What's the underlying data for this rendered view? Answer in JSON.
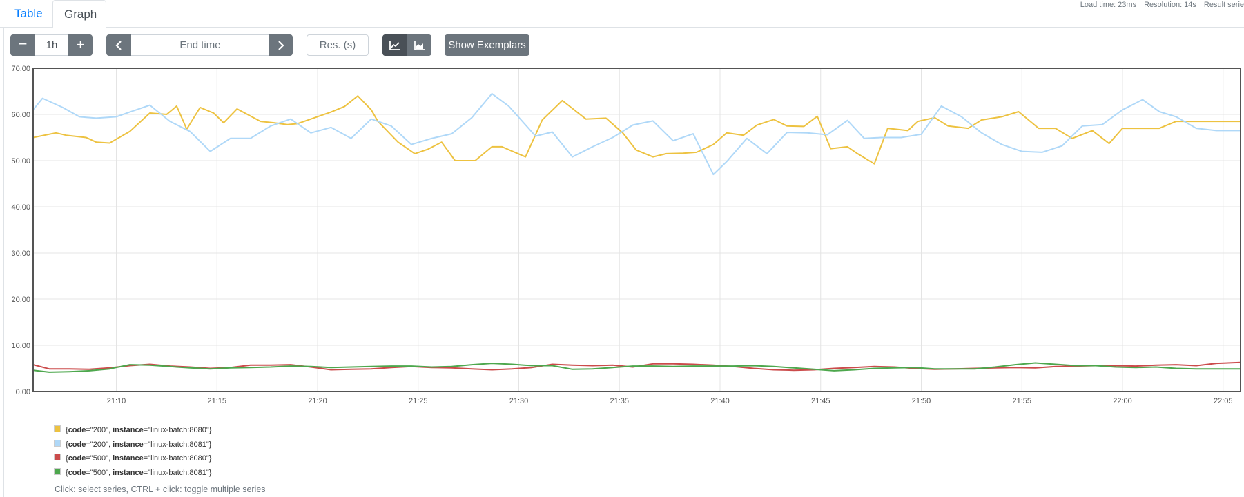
{
  "tabs": [
    {
      "label": "Table"
    },
    {
      "label": "Graph"
    }
  ],
  "stats": {
    "load_time": "Load time: 23ms",
    "resolution": "Resolution: 14s",
    "result_series": "Result serie"
  },
  "controls": {
    "range_value": "1h",
    "end_time_placeholder": "End time",
    "resolution_placeholder": "Res. (s)",
    "show_exemplars": "Show Exemplars"
  },
  "legend": {
    "hint": "Click: select series, CTRL + click: toggle multiple series"
  },
  "chart_data": {
    "type": "line",
    "title": "",
    "xlabel": "",
    "ylabel": "",
    "ylim": [
      0,
      70
    ],
    "y_ticks": [
      "0.00",
      "10.00",
      "20.00",
      "30.00",
      "40.00",
      "50.00",
      "60.00",
      "70.00"
    ],
    "x_ticks": [
      "21:10",
      "21:15",
      "21:20",
      "21:25",
      "21:30",
      "21:35",
      "21:40",
      "21:45",
      "21:50",
      "21:55",
      "22:00",
      "22:05"
    ],
    "xlim": [
      "21:05:52",
      "22:05:52"
    ],
    "grid": true,
    "legend_position": "bottom",
    "series": [
      {
        "code": "200",
        "instance": "linux-batch:8080",
        "color": "#edc240",
        "x": [
          "21:05:52",
          "21:07:00",
          "21:07:30",
          "21:08:30",
          "21:09:00",
          "21:09:40",
          "21:10:40",
          "21:11:40",
          "21:12:30",
          "21:13:00",
          "21:13:30",
          "21:14:10",
          "21:14:50",
          "21:15:20",
          "21:16:00",
          "21:17:10",
          "21:17:50",
          "21:18:30",
          "21:19:00",
          "21:20:40",
          "21:21:20",
          "21:22:00",
          "21:22:40",
          "21:23:00",
          "21:24:00",
          "21:24:50",
          "21:25:30",
          "21:26:10",
          "21:26:50",
          "21:27:50",
          "21:28:40",
          "21:29:10",
          "21:30:20",
          "21:31:10",
          "21:32:10",
          "21:33:20",
          "21:34:20",
          "21:35:10",
          "21:35:50",
          "21:36:40",
          "21:37:20",
          "21:38:10",
          "21:38:50",
          "21:39:40",
          "21:40:20",
          "21:41:10",
          "21:41:50",
          "21:42:40",
          "21:43:20",
          "21:44:10",
          "21:44:50",
          "21:45:30",
          "21:46:20",
          "21:46:50",
          "21:47:40",
          "21:48:20",
          "21:49:20",
          "21:49:50",
          "21:50:40",
          "21:51:20",
          "21:52:20",
          "21:53:00",
          "21:54:00",
          "21:54:50",
          "21:55:50",
          "21:56:40",
          "21:57:30",
          "21:58:30",
          "21:59:20",
          "22:00:00",
          "22:01:00",
          "22:01:50",
          "22:02:40",
          "22:03:20",
          "22:04:00",
          "22:05:00",
          "22:05:52"
        ],
        "values": [
          55,
          56,
          55.5,
          55,
          54,
          53.8,
          56.3,
          60.3,
          60,
          61.8,
          56.8,
          61.5,
          60.3,
          58.2,
          61.2,
          58.5,
          58.2,
          57.8,
          58,
          60.5,
          61.7,
          64,
          61,
          58.5,
          54,
          51.5,
          52.5,
          54,
          50,
          50,
          53,
          53,
          50.8,
          58.8,
          63,
          59,
          59.2,
          56,
          52.3,
          50.8,
          51.5,
          51.6,
          51.8,
          53.5,
          56,
          55.5,
          57.7,
          58.9,
          57.5,
          57.4,
          59.6,
          52.6,
          53,
          51.5,
          49.3,
          57,
          56.5,
          58.5,
          59.3,
          57.5,
          57,
          58.8,
          59.5,
          60.6,
          57,
          57,
          54.8,
          56.5,
          53.7,
          57,
          57,
          57,
          58.5,
          58.5,
          58.5,
          58.5,
          58.5
        ]
      },
      {
        "code": "200",
        "instance": "linux-batch:8081",
        "color": "#afd8f8",
        "x": [
          "21:05:52",
          "21:06:20",
          "21:07:20",
          "21:08:10",
          "21:09:00",
          "21:10:00",
          "21:10:40",
          "21:11:40",
          "21:12:40",
          "21:13:40",
          "21:14:40",
          "21:15:40",
          "21:16:40",
          "21:17:40",
          "21:18:40",
          "21:19:40",
          "21:20:40",
          "21:21:40",
          "21:22:40",
          "21:23:40",
          "21:24:40",
          "21:25:40",
          "21:26:40",
          "21:27:40",
          "21:28:40",
          "21:29:30",
          "21:30:50",
          "21:31:40",
          "21:32:40",
          "21:33:40",
          "21:34:40",
          "21:35:40",
          "21:36:40",
          "21:37:40",
          "21:38:40",
          "21:39:40",
          "21:40:20",
          "21:41:20",
          "21:42:20",
          "21:43:20",
          "21:44:20",
          "21:45:20",
          "21:46:20",
          "21:47:10",
          "21:48:00",
          "21:49:00",
          "21:50:00",
          "21:51:00",
          "21:52:00",
          "21:53:00",
          "21:54:00",
          "21:55:00",
          "21:56:00",
          "21:57:00",
          "21:58:00",
          "21:59:00",
          "22:00:00",
          "22:01:00",
          "22:01:50",
          "22:02:40",
          "22:03:40",
          "22:04:40",
          "22:05:52"
        ],
        "values": [
          61,
          63.5,
          61.5,
          59.5,
          59.2,
          59.5,
          60.5,
          62,
          58.5,
          56.3,
          52,
          54.8,
          54.8,
          57.5,
          59,
          56,
          57.2,
          54.8,
          59,
          57.5,
          53.5,
          54.8,
          55.8,
          59.3,
          64.5,
          61.8,
          55.3,
          56.2,
          50.8,
          53,
          55,
          57.7,
          58.6,
          54.3,
          55.8,
          47,
          49.8,
          54.8,
          51.5,
          56.1,
          56,
          55.6,
          58.7,
          54.8,
          55,
          55,
          55.7,
          61.8,
          59.5,
          56,
          53.5,
          52,
          51.8,
          53.2,
          57.5,
          57.8,
          61,
          63.2,
          60.6,
          59.5,
          57,
          56.5,
          56.5
        ]
      },
      {
        "code": "500",
        "instance": "linux-batch:8080",
        "color": "#cb4b4b",
        "x": [
          "21:05:52",
          "21:06:40",
          "21:07:40",
          "21:08:40",
          "21:09:40",
          "21:10:40",
          "21:11:40",
          "21:12:40",
          "21:13:40",
          "21:14:40",
          "21:15:40",
          "21:16:40",
          "21:17:40",
          "21:18:40",
          "21:19:40",
          "21:20:40",
          "21:21:40",
          "21:22:40",
          "21:23:40",
          "21:24:40",
          "21:25:40",
          "21:26:40",
          "21:27:40",
          "21:28:40",
          "21:29:40",
          "21:30:40",
          "21:31:40",
          "21:32:40",
          "21:33:40",
          "21:34:40",
          "21:35:40",
          "21:36:40",
          "21:37:40",
          "21:38:40",
          "21:39:40",
          "21:40:40",
          "21:41:40",
          "21:42:40",
          "21:43:40",
          "21:44:40",
          "21:45:40",
          "21:46:40",
          "21:47:40",
          "21:48:40",
          "21:49:40",
          "21:50:40",
          "21:51:40",
          "21:52:40",
          "21:53:40",
          "21:54:40",
          "21:55:40",
          "21:56:40",
          "21:57:40",
          "21:58:40",
          "21:59:40",
          "22:00:40",
          "22:01:40",
          "22:02:40",
          "22:03:40",
          "22:04:40",
          "22:05:52"
        ],
        "values": [
          5.8,
          4.9,
          4.9,
          4.8,
          5.1,
          5.6,
          5.9,
          5.5,
          5.3,
          5,
          5.2,
          5.7,
          5.7,
          5.8,
          5.3,
          4.7,
          4.8,
          4.9,
          5.2,
          5.4,
          5.2,
          5.1,
          4.9,
          4.7,
          4.9,
          5.2,
          5.9,
          5.7,
          5.6,
          5.7,
          5.3,
          6,
          6,
          5.9,
          5.7,
          5.4,
          5,
          4.7,
          4.6,
          4.7,
          5,
          5.2,
          5.4,
          5.3,
          5,
          4.8,
          4.9,
          5,
          5.1,
          5.2,
          5.1,
          5.4,
          5.5,
          5.6,
          5.6,
          5.5,
          5.7,
          5.8,
          5.6,
          6.1,
          6.3
        ]
      },
      {
        "code": "500",
        "instance": "linux-batch:8081",
        "color": "#4da74d",
        "x": [
          "21:05:52",
          "21:06:40",
          "21:07:40",
          "21:08:40",
          "21:09:40",
          "21:10:40",
          "21:11:40",
          "21:12:40",
          "21:13:40",
          "21:14:40",
          "21:15:40",
          "21:16:40",
          "21:17:40",
          "21:18:40",
          "21:19:40",
          "21:20:40",
          "21:21:40",
          "21:22:40",
          "21:23:40",
          "21:24:40",
          "21:25:40",
          "21:26:40",
          "21:27:40",
          "21:28:40",
          "21:29:40",
          "21:30:40",
          "21:31:40",
          "21:32:40",
          "21:33:40",
          "21:34:40",
          "21:35:40",
          "21:36:40",
          "21:37:40",
          "21:38:40",
          "21:39:40",
          "21:40:40",
          "21:41:40",
          "21:42:40",
          "21:43:40",
          "21:44:40",
          "21:45:40",
          "21:46:40",
          "21:47:40",
          "21:48:40",
          "21:49:40",
          "21:50:40",
          "21:51:40",
          "21:52:40",
          "21:53:40",
          "21:54:40",
          "21:55:40",
          "21:56:40",
          "21:57:40",
          "21:58:40",
          "21:59:40",
          "22:00:40",
          "22:01:40",
          "22:02:40",
          "22:03:40",
          "22:04:40",
          "22:05:52"
        ],
        "values": [
          4.6,
          4.2,
          4.3,
          4.5,
          4.9,
          5.8,
          5.7,
          5.4,
          5.1,
          4.9,
          5.1,
          5.2,
          5.3,
          5.5,
          5.4,
          5.2,
          5.3,
          5.4,
          5.5,
          5.5,
          5.3,
          5.4,
          5.8,
          6.1,
          5.9,
          5.6,
          5.6,
          4.8,
          4.9,
          5.2,
          5.5,
          5.5,
          5.4,
          5.5,
          5.5,
          5.5,
          5.6,
          5.4,
          5.1,
          4.8,
          4.5,
          4.7,
          5,
          5.1,
          5.2,
          4.9,
          4.9,
          4.9,
          5.3,
          5.8,
          6.2,
          5.9,
          5.6,
          5.6,
          5.3,
          5.2,
          5.3,
          5,
          4.9,
          4.9,
          4.9
        ]
      }
    ]
  }
}
